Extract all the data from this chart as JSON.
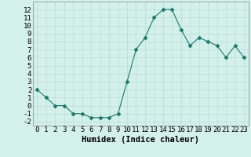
{
  "x": [
    0,
    1,
    2,
    3,
    4,
    5,
    6,
    7,
    8,
    9,
    10,
    11,
    12,
    13,
    14,
    15,
    16,
    17,
    18,
    19,
    20,
    21,
    22,
    23
  ],
  "y": [
    2,
    1,
    0,
    0,
    -1,
    -1,
    -1.5,
    -1.5,
    -1.5,
    -1,
    3,
    7,
    8.5,
    11,
    12,
    12,
    9.5,
    7.5,
    8.5,
    8,
    7.5,
    6,
    7.5,
    6
  ],
  "line_color": "#1a7a6a",
  "marker": "D",
  "marker_size": 2.5,
  "bg_color": "#d4f0eb",
  "grid_color": "#b8ddd7",
  "xlabel": "Humidex (Indice chaleur)",
  "xlim": [
    -0.5,
    23.5
  ],
  "ylim": [
    -2.5,
    13
  ],
  "xticks": [
    0,
    1,
    2,
    3,
    4,
    5,
    6,
    7,
    8,
    9,
    10,
    11,
    12,
    13,
    14,
    15,
    16,
    17,
    18,
    19,
    20,
    21,
    22,
    23
  ],
  "yticks": [
    -2,
    -1,
    0,
    1,
    2,
    3,
    4,
    5,
    6,
    7,
    8,
    9,
    10,
    11,
    12
  ],
  "tick_fontsize": 6.5,
  "xlabel_fontsize": 7.5
}
